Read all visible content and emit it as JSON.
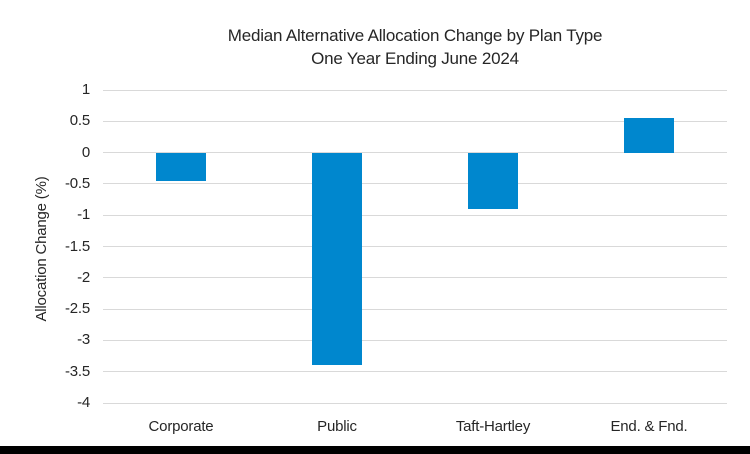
{
  "page": {
    "background": "#FFFFFF",
    "footer_bar_color": "#000000"
  },
  "chart_data": {
    "type": "bar",
    "title": "Median Alternative Allocation Change by Plan Type",
    "subtitle": "One Year Ending June 2024",
    "ylabel": "Allocation Change (%)",
    "xlabel": "",
    "categories": [
      "Corporate",
      "Public",
      "Taft-Hartley",
      "End. & Fnd."
    ],
    "values": [
      -0.45,
      -3.4,
      -0.9,
      0.55
    ],
    "ylim": [
      -4,
      1
    ],
    "ytick_step": 0.5,
    "ytick_labels": [
      "1",
      "0.5",
      "0",
      "-0.5",
      "-1",
      "-1.5",
      "-2",
      "-2.5",
      "-3",
      "-3.5",
      "-4"
    ],
    "grid": true,
    "legend_position": "none",
    "bar_color": "#0087CE",
    "gridline_color": "#D9D9D9",
    "text_color": "#262626"
  }
}
